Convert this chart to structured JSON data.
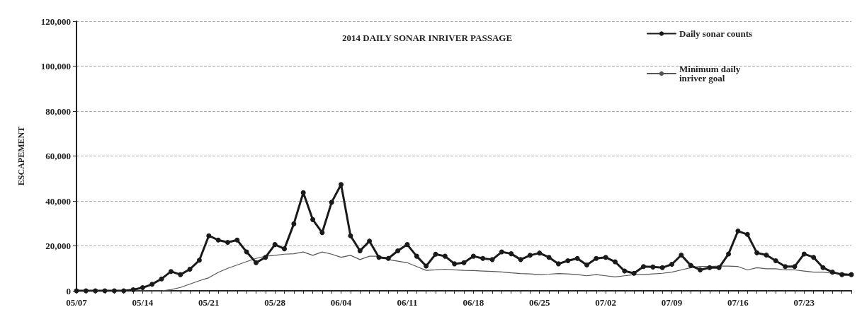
{
  "chart_data": {
    "type": "line",
    "title": "2014 DAILY SONAR INRIVER PASSAGE",
    "ylabel": "ESCAPEMENT",
    "categories": [
      "05/07",
      null,
      null,
      null,
      null,
      null,
      null,
      "05/14",
      null,
      null,
      null,
      null,
      null,
      null,
      "05/21",
      null,
      null,
      null,
      null,
      null,
      null,
      "05/28",
      null,
      null,
      null,
      null,
      null,
      null,
      "06/04",
      null,
      null,
      null,
      null,
      null,
      null,
      "06/11",
      null,
      null,
      null,
      null,
      null,
      null,
      "06/18",
      null,
      null,
      null,
      null,
      null,
      null,
      "06/25",
      null,
      null,
      null,
      null,
      null,
      null,
      "07/02",
      null,
      null,
      null,
      null,
      null,
      null,
      "07/09",
      null,
      null,
      null,
      null,
      null,
      null,
      "07/16",
      null,
      null,
      null,
      null,
      null,
      null,
      "07/23",
      null,
      null,
      null,
      null,
      null
    ],
    "series": [
      {
        "name": "Daily sonar counts",
        "color": "#1a1a1a",
        "marker": "circle",
        "values": [
          0,
          0,
          0,
          0,
          0,
          0,
          500,
          1400,
          2900,
          5300,
          8600,
          7200,
          9600,
          13600,
          24500,
          22600,
          21600,
          22600,
          17300,
          12500,
          14900,
          20600,
          18700,
          29800,
          43700,
          31700,
          25900,
          39400,
          47300,
          24500,
          17800,
          22100,
          14900,
          14400,
          17800,
          20600,
          15400,
          11000,
          16300,
          15400,
          12000,
          12500,
          15400,
          14400,
          13900,
          17300,
          16500,
          13900,
          15800,
          16800,
          14900,
          12000,
          13400,
          14400,
          11500,
          14400,
          14900,
          12900,
          8800,
          7800,
          10800,
          10600,
          10300,
          11800,
          15900,
          11300,
          9300,
          10300,
          10300,
          16400,
          26600,
          25100,
          16900,
          15900,
          13400,
          10800,
          10800,
          16400,
          14900,
          10300,
          8300,
          7200,
          7200
        ]
      },
      {
        "name": "Minimum daily inriver goal",
        "color": "#555555",
        "marker": "none",
        "values": [
          0,
          0,
          0,
          0,
          0,
          0,
          0,
          0,
          0,
          0,
          500,
          1500,
          3000,
          4500,
          5800,
          8200,
          10000,
          11500,
          13000,
          14400,
          15400,
          15800,
          16300,
          16500,
          17300,
          15800,
          17300,
          16300,
          14900,
          15800,
          13900,
          15400,
          15400,
          13900,
          13200,
          12500,
          10800,
          9100,
          9300,
          9600,
          9300,
          9100,
          9000,
          8800,
          8600,
          8400,
          8000,
          7700,
          7500,
          7200,
          7400,
          7700,
          7500,
          7200,
          6700,
          7200,
          6700,
          6200,
          6700,
          7200,
          7200,
          7500,
          7800,
          8300,
          9300,
          10300,
          10800,
          10800,
          11000,
          11000,
          10800,
          9300,
          10300,
          9800,
          9800,
          9300,
          9300,
          8800,
          8300,
          8300,
          7800,
          7800,
          7200
        ]
      }
    ],
    "ylim": [
      0,
      120000
    ],
    "yticks": [
      {
        "value": 0,
        "label": "0"
      },
      {
        "value": 20000,
        "label": "20,000"
      },
      {
        "value": 40000,
        "label": "40,000"
      },
      {
        "value": 60000,
        "label": "60,000"
      },
      {
        "value": 80000,
        "label": "80,000"
      },
      {
        "value": 100000,
        "label": "100,000"
      },
      {
        "value": 120000,
        "label": "120,000"
      }
    ],
    "grid": "y",
    "legend": "top right"
  }
}
